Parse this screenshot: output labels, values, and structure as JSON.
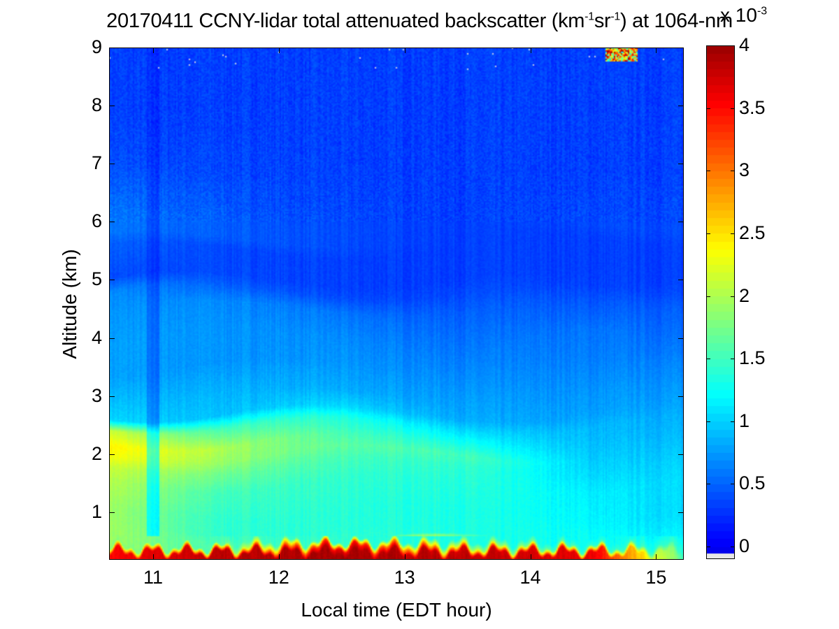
{
  "chart_data": {
    "type": "heatmap",
    "title_main": "20170411 CCNY-lidar total attenuated backscatter (km",
    "title_sup1": "-1",
    "title_mid": "sr",
    "title_sup2": "-1",
    "title_end": ") at 1064-nm",
    "xlabel": "Local time (EDT hour)",
    "ylabel": "Altitude (km)",
    "xlim": [
      10.65,
      15.22
    ],
    "ylim": [
      0.18,
      9
    ],
    "xticks": [
      "11",
      "12",
      "13",
      "14",
      "15"
    ],
    "xtick_values": [
      11,
      12,
      13,
      14,
      15
    ],
    "yticks": [
      "1",
      "2",
      "3",
      "4",
      "5",
      "6",
      "7",
      "8",
      "9"
    ],
    "ytick_values": [
      1,
      2,
      3,
      4,
      5,
      6,
      7,
      8,
      9
    ],
    "colorbar": {
      "colormap": "jet",
      "range": [
        -0.1,
        4
      ],
      "ticks": [
        "0",
        "0.5",
        "1",
        "1.5",
        "2",
        "2.5",
        "3",
        "3.5",
        "4"
      ],
      "tick_values": [
        0,
        0.5,
        1,
        1.5,
        2,
        2.5,
        3,
        3.5,
        4
      ],
      "multiplier_base": "x 10",
      "multiplier_exp": "-3",
      "below_range_color": "#e6e6e6"
    },
    "profile_altitudes_km": [
      0.2,
      0.3,
      0.4,
      0.5,
      0.7,
      1.0,
      1.5,
      1.8,
      2.0,
      2.2,
      2.5,
      2.7,
      3.0,
      3.5,
      4.0,
      4.5,
      4.8,
      5.0,
      5.5,
      5.7,
      6.0,
      7.0,
      8.0,
      9.0
    ],
    "profiles": [
      {
        "time": 10.65,
        "values": [
          3.5,
          3.5,
          1.8,
          1.9,
          1.9,
          1.9,
          2.0,
          2.1,
          2.3,
          2.4,
          2.1,
          1.0,
          0.9,
          0.75,
          0.75,
          0.7,
          0.65,
          0.35,
          0.45,
          0.55,
          0.55,
          0.35,
          0.3,
          0.3
        ]
      },
      {
        "time": 11.5,
        "values": [
          3.8,
          3.8,
          1.5,
          1.5,
          1.4,
          1.4,
          1.5,
          1.7,
          1.9,
          2.0,
          1.5,
          0.9,
          0.85,
          0.7,
          0.7,
          0.65,
          0.45,
          0.35,
          0.35,
          0.45,
          0.45,
          0.35,
          0.3,
          0.3
        ]
      },
      {
        "time": 12.5,
        "values": [
          3.9,
          3.9,
          3.6,
          1.4,
          1.35,
          1.35,
          1.4,
          1.5,
          1.6,
          1.5,
          1.3,
          1.0,
          0.8,
          0.7,
          0.65,
          0.55,
          0.35,
          0.3,
          0.3,
          0.35,
          0.35,
          0.3,
          0.3,
          0.3
        ]
      },
      {
        "time": 13.5,
        "values": [
          3.8,
          3.7,
          2.0,
          1.3,
          1.3,
          1.3,
          1.35,
          1.4,
          1.5,
          1.3,
          1.0,
          0.8,
          0.75,
          0.65,
          0.55,
          0.45,
          0.35,
          0.3,
          0.3,
          0.3,
          0.3,
          0.3,
          0.3,
          0.3
        ]
      },
      {
        "time": 14.5,
        "values": [
          3.6,
          3.6,
          1.4,
          1.2,
          1.2,
          1.15,
          1.1,
          1.0,
          0.95,
          0.9,
          0.85,
          0.75,
          0.7,
          0.6,
          0.55,
          0.4,
          0.3,
          0.3,
          0.3,
          0.3,
          0.35,
          0.3,
          0.3,
          0.3
        ]
      },
      {
        "time": 15.22,
        "values": [
          1.6,
          1.5,
          1.4,
          1.3,
          1.1,
          1.0,
          1.0,
          0.95,
          0.9,
          0.85,
          0.8,
          0.75,
          0.7,
          0.6,
          0.5,
          0.45,
          0.35,
          0.3,
          0.3,
          0.3,
          0.35,
          0.3,
          0.3,
          0.3
        ]
      }
    ],
    "low_signal_strip": {
      "time_range": [
        10.95,
        11.05
      ],
      "factor": 0.7
    }
  }
}
